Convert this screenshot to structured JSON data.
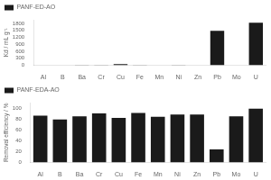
{
  "chart_data": [
    {
      "type": "bar",
      "categories": [
        "Al",
        "B",
        "Ba",
        "Cr",
        "Cu",
        "Fe",
        "Mn",
        "Ni",
        "Zn",
        "Pb",
        "Mo",
        "U"
      ],
      "series": [
        {
          "name": "PANF-ED-AO",
          "color": "#1a1a1a",
          "values": [
            8,
            5,
            10,
            18,
            50,
            12,
            8,
            10,
            8,
            1480,
            8,
            1820
          ]
        }
      ],
      "ylabel": "Kd / mL g⁻¹",
      "ylim": [
        0,
        1950
      ],
      "yticks": [
        0,
        300,
        600,
        900,
        1200,
        1500,
        1800
      ],
      "grid": false,
      "legend": "upper left"
    },
    {
      "type": "bar",
      "categories": [
        "Al",
        "B",
        "Ba",
        "Cr",
        "Cu",
        "Fe",
        "Mn",
        "Ni",
        "Zn",
        "Pb",
        "Mo",
        "U"
      ],
      "series": [
        {
          "name": "PANF-EDA-AO",
          "color": "#1a1a1a",
          "values": [
            86,
            79,
            85,
            90,
            82,
            91,
            84,
            88,
            88,
            24,
            85,
            99
          ]
        }
      ],
      "ylabel": "Removal efficiency / %",
      "ylim": [
        0,
        110
      ],
      "yticks": [
        0,
        20,
        40,
        60,
        80,
        100
      ],
      "grid": false,
      "legend": "upper left"
    }
  ]
}
